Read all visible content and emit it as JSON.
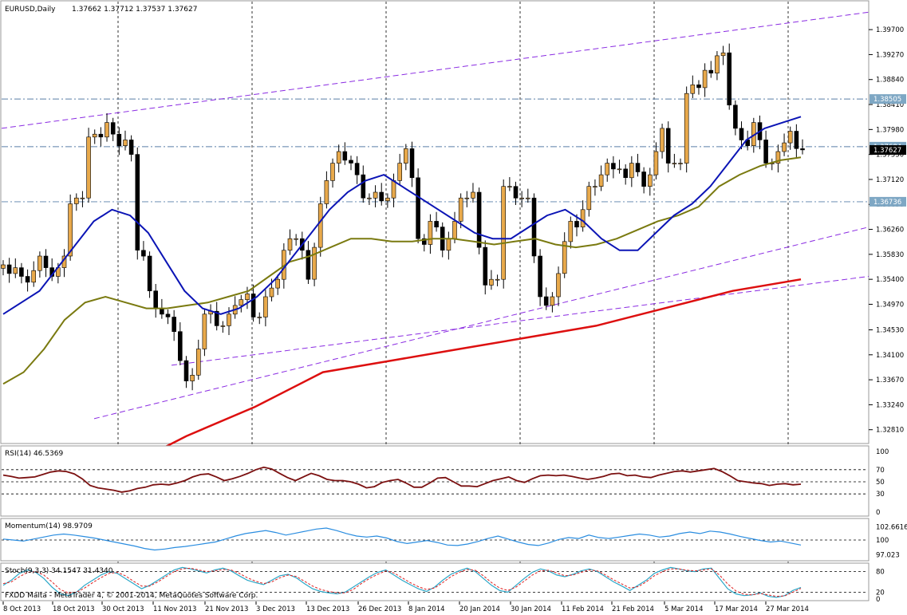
{
  "chart_data": [
    {
      "type": "candlestick",
      "title": "EURUSD,Daily",
      "ohlc_header": [
        "1.37662",
        "1.37712",
        "1.37537",
        "1.37627"
      ],
      "ylim": [
        1.326,
        1.401
      ],
      "y_ticks": [
        "1.39700",
        "1.39270",
        "1.38840",
        "1.38410",
        "1.37980",
        "1.37550",
        "1.37120",
        "1.36690",
        "1.36260",
        "1.35830",
        "1.35400",
        "1.34970",
        "1.34530",
        "1.34100",
        "1.33670",
        "1.33240",
        "1.32810"
      ],
      "x_ticks": [
        "8 Oct 2013",
        "18 Oct 2013",
        "30 Oct 2013",
        "11 Nov 2013",
        "21 Nov 2013",
        "3 Dec 2013",
        "13 Dec 2013",
        "26 Dec 2013",
        "8 Jan 2014",
        "20 Jan 2014",
        "30 Jan 2014",
        "11 Feb 2014",
        "21 Feb 2014",
        "5 Mar 2014",
        "17 Mar 2014",
        "27 Mar 2014"
      ],
      "price_labels": [
        {
          "text": "1.38505",
          "value": 1.38505,
          "color": "#7ea7c4"
        },
        {
          "text": "1.37684",
          "value": 1.37684,
          "color": "#7ea7c4"
        },
        {
          "text": "1.37627",
          "value": 1.37627,
          "color": "#000000"
        },
        {
          "text": "1.36736",
          "value": 1.36736,
          "color": "#7ea7c4"
        }
      ],
      "hlines": [
        1.38505,
        1.37684,
        1.36736
      ],
      "close_path": [
        1.3565,
        1.355,
        1.356,
        1.3545,
        1.3535,
        1.3555,
        1.358,
        1.356,
        1.3545,
        1.356,
        1.358,
        1.367,
        1.368,
        1.368,
        1.3785,
        1.379,
        1.3785,
        1.381,
        1.379,
        1.377,
        1.378,
        1.3755,
        1.359,
        1.358,
        1.352,
        1.349,
        1.348,
        1.3475,
        1.345,
        1.34,
        1.3365,
        1.3375,
        1.342,
        1.348,
        1.3485,
        1.346,
        1.346,
        1.348,
        1.3495,
        1.3505,
        1.3515,
        1.3475,
        1.3475,
        1.351,
        1.3525,
        1.354,
        1.359,
        1.361,
        1.361,
        1.359,
        1.354,
        1.3595,
        1.367,
        1.371,
        1.374,
        1.376,
        1.3745,
        1.374,
        1.372,
        1.368,
        1.368,
        1.369,
        1.3675,
        1.368,
        1.371,
        1.374,
        1.3765,
        1.3715,
        1.361,
        1.36,
        1.364,
        1.363,
        1.359,
        1.361,
        1.364,
        1.368,
        1.368,
        1.369,
        1.3595,
        1.353,
        1.354,
        1.354,
        1.37,
        1.37,
        1.368,
        1.368,
        1.368,
        1.358,
        1.351,
        1.3495,
        1.351,
        1.355,
        1.3605,
        1.364,
        1.363,
        1.366,
        1.37,
        1.37,
        1.372,
        1.374,
        1.373,
        1.373,
        1.3715,
        1.374,
        1.3725,
        1.37,
        1.372,
        1.376,
        1.38,
        1.374,
        1.374,
        1.374,
        1.386,
        1.3875,
        1.387,
        1.39,
        1.3895,
        1.3925,
        1.393,
        1.384,
        1.38,
        1.378,
        1.377,
        1.381,
        1.378,
        1.374,
        1.374,
        1.376,
        1.3775,
        1.3795,
        1.3765,
        1.3763
      ],
      "sma_fast": [
        1.348,
        1.35,
        1.352,
        1.356,
        1.36,
        1.364,
        1.366,
        1.365,
        1.362,
        1.357,
        1.352,
        1.349,
        1.348,
        1.349,
        1.351,
        1.354,
        1.358,
        1.362,
        1.366,
        1.369,
        1.371,
        1.372,
        1.37,
        1.368,
        1.366,
        1.364,
        1.362,
        1.361,
        1.361,
        1.363,
        1.365,
        1.366,
        1.364,
        1.361,
        1.359,
        1.359,
        1.362,
        1.365,
        1.367,
        1.37,
        1.374,
        1.378,
        1.38,
        1.381,
        1.382
      ],
      "sma_slow": [
        1.336,
        1.338,
        1.342,
        1.347,
        1.35,
        1.351,
        1.35,
        1.349,
        1.349,
        1.3495,
        1.35,
        1.351,
        1.352,
        1.3545,
        1.357,
        1.358,
        1.3595,
        1.361,
        1.361,
        1.3605,
        1.3605,
        1.361,
        1.361,
        1.3605,
        1.36,
        1.3605,
        1.361,
        1.36,
        1.3595,
        1.36,
        1.361,
        1.3625,
        1.364,
        1.365,
        1.3665,
        1.37,
        1.372,
        1.3735,
        1.3745,
        1.375
      ],
      "sma_200": [
        1.321,
        1.327,
        1.332,
        1.338,
        1.34,
        1.342,
        1.344,
        1.346,
        1.349,
        1.352,
        1.354
      ],
      "channel_lines": [
        {
          "from": 1.38,
          "to": 1.4,
          "style": "dashed"
        },
        {
          "from": 1.33,
          "to": 1.363,
          "style": "dashed"
        },
        {
          "from": 1.3392,
          "to": 1.3545,
          "style": "dashed"
        }
      ]
    },
    {
      "type": "line",
      "title": "RSI(14) 46.5369",
      "ylim": [
        0,
        100
      ],
      "y_ticks": [
        "100",
        "70",
        "50",
        "30",
        "0"
      ],
      "levels": [
        70,
        50,
        30
      ],
      "values": [
        61,
        59,
        56,
        57,
        58,
        62,
        66,
        68,
        67,
        63,
        55,
        44,
        40,
        38,
        36,
        33,
        35,
        39,
        41,
        45,
        46,
        45,
        48,
        52,
        58,
        62,
        63,
        58,
        52,
        55,
        59,
        64,
        70,
        74,
        71,
        64,
        57,
        52,
        58,
        64,
        60,
        54,
        52,
        52,
        50,
        46,
        40,
        42,
        49,
        52,
        54,
        48,
        41,
        41,
        48,
        56,
        57,
        50,
        43,
        43,
        42,
        47,
        52,
        55,
        58,
        52,
        49,
        55,
        60,
        61,
        60,
        61,
        59,
        56,
        54,
        56,
        59,
        63,
        64,
        60,
        61,
        58,
        57,
        61,
        64,
        67,
        68,
        66,
        68,
        70,
        72,
        67,
        60,
        52,
        50,
        48,
        47,
        44,
        46,
        47,
        45,
        46
      ]
    },
    {
      "type": "line",
      "title": "Momentum(14) 98.9709",
      "ylim": [
        96.0,
        104.0
      ],
      "y_ticks": [
        "102.6616",
        "100",
        "97.023"
      ],
      "levels": [
        100
      ],
      "values": [
        100.2,
        100.0,
        99.8,
        100.2,
        100.6,
        101.0,
        101.2,
        101.0,
        100.7,
        100.4,
        100.0,
        99.6,
        99.2,
        98.8,
        98.3,
        98.0,
        98.2,
        98.5,
        98.7,
        99.0,
        99.3,
        99.6,
        100.2,
        100.8,
        101.3,
        101.6,
        101.9,
        101.5,
        101.0,
        101.4,
        101.8,
        102.2,
        102.4,
        101.9,
        101.3,
        100.8,
        100.6,
        100.8,
        100.4,
        99.7,
        99.3,
        99.6,
        99.9,
        99.5,
        99.0,
        98.9,
        99.2,
        99.7,
        100.3,
        100.8,
        100.2,
        99.6,
        99.1,
        98.9,
        99.4,
        100.1,
        100.5,
        100.3,
        101.0,
        100.5,
        100.3,
        100.6,
        100.9,
        101.2,
        101.0,
        100.6,
        100.8,
        101.3,
        101.6,
        101.3,
        101.8,
        101.6,
        101.2,
        100.7,
        100.3,
        99.9,
        99.6,
        99.8,
        99.4,
        99.0
      ]
    },
    {
      "type": "line",
      "title": "Stoch(9,3,3) 34.1547 31.4340",
      "ylim": [
        0,
        100
      ],
      "y_ticks": [
        "80",
        "20",
        "0"
      ],
      "levels": [
        80,
        20
      ],
      "main": [
        40,
        55,
        75,
        85,
        78,
        60,
        35,
        15,
        10,
        20,
        40,
        55,
        70,
        80,
        75,
        60,
        45,
        30,
        40,
        55,
        70,
        85,
        92,
        88,
        82,
        76,
        85,
        90,
        82,
        68,
        55,
        48,
        42,
        55,
        68,
        72,
        62,
        45,
        30,
        22,
        18,
        15,
        20,
        35,
        50,
        65,
        78,
        85,
        70,
        55,
        42,
        30,
        22,
        35,
        55,
        72,
        82,
        90,
        80,
        60,
        40,
        25,
        20,
        40,
        60,
        78,
        88,
        82,
        70,
        65,
        72,
        82,
        88,
        80,
        65,
        50,
        38,
        25,
        40,
        55,
        75,
        85,
        92,
        88,
        82,
        80,
        88,
        90,
        60,
        30,
        15,
        10,
        12,
        18,
        8,
        5,
        10,
        25,
        34
      ],
      "signal": [
        45,
        50,
        65,
        78,
        80,
        70,
        50,
        28,
        18,
        20,
        32,
        48,
        62,
        75,
        78,
        68,
        52,
        38,
        38,
        50,
        65,
        80,
        88,
        90,
        85,
        80,
        82,
        86,
        85,
        75,
        62,
        52,
        45,
        50,
        62,
        70,
        66,
        52,
        38,
        28,
        22,
        18,
        18,
        28,
        45,
        60,
        72,
        82,
        76,
        62,
        48,
        36,
        28,
        32,
        48,
        65,
        78,
        86,
        84,
        68,
        48,
        32,
        25,
        35,
        52,
        70,
        82,
        84,
        76,
        68,
        70,
        78,
        85,
        82,
        70,
        56,
        44,
        32,
        36,
        50,
        68,
        80,
        88,
        88,
        84,
        82,
        85,
        88,
        70,
        44,
        24,
        14,
        12,
        16,
        12,
        8,
        9,
        20,
        31
      ]
    }
  ],
  "footer_text": "FXDD Malta - MetaTrader 4, © 2001-2014, MetaQuotes Software Corp.",
  "colors": {
    "bull": "#e8a94b",
    "bear": "#000000",
    "sma_fast": "#0b14b5",
    "sma_slow": "#7a7a10",
    "sma_200": "#dd0f0f",
    "channel": "#8a2be2",
    "rsi": "#7b1010",
    "momentum": "#2a8de0",
    "stoch_main": "#2aa7c8",
    "stoch_signal": "#e02020",
    "hline": "#5a7fa8"
  }
}
